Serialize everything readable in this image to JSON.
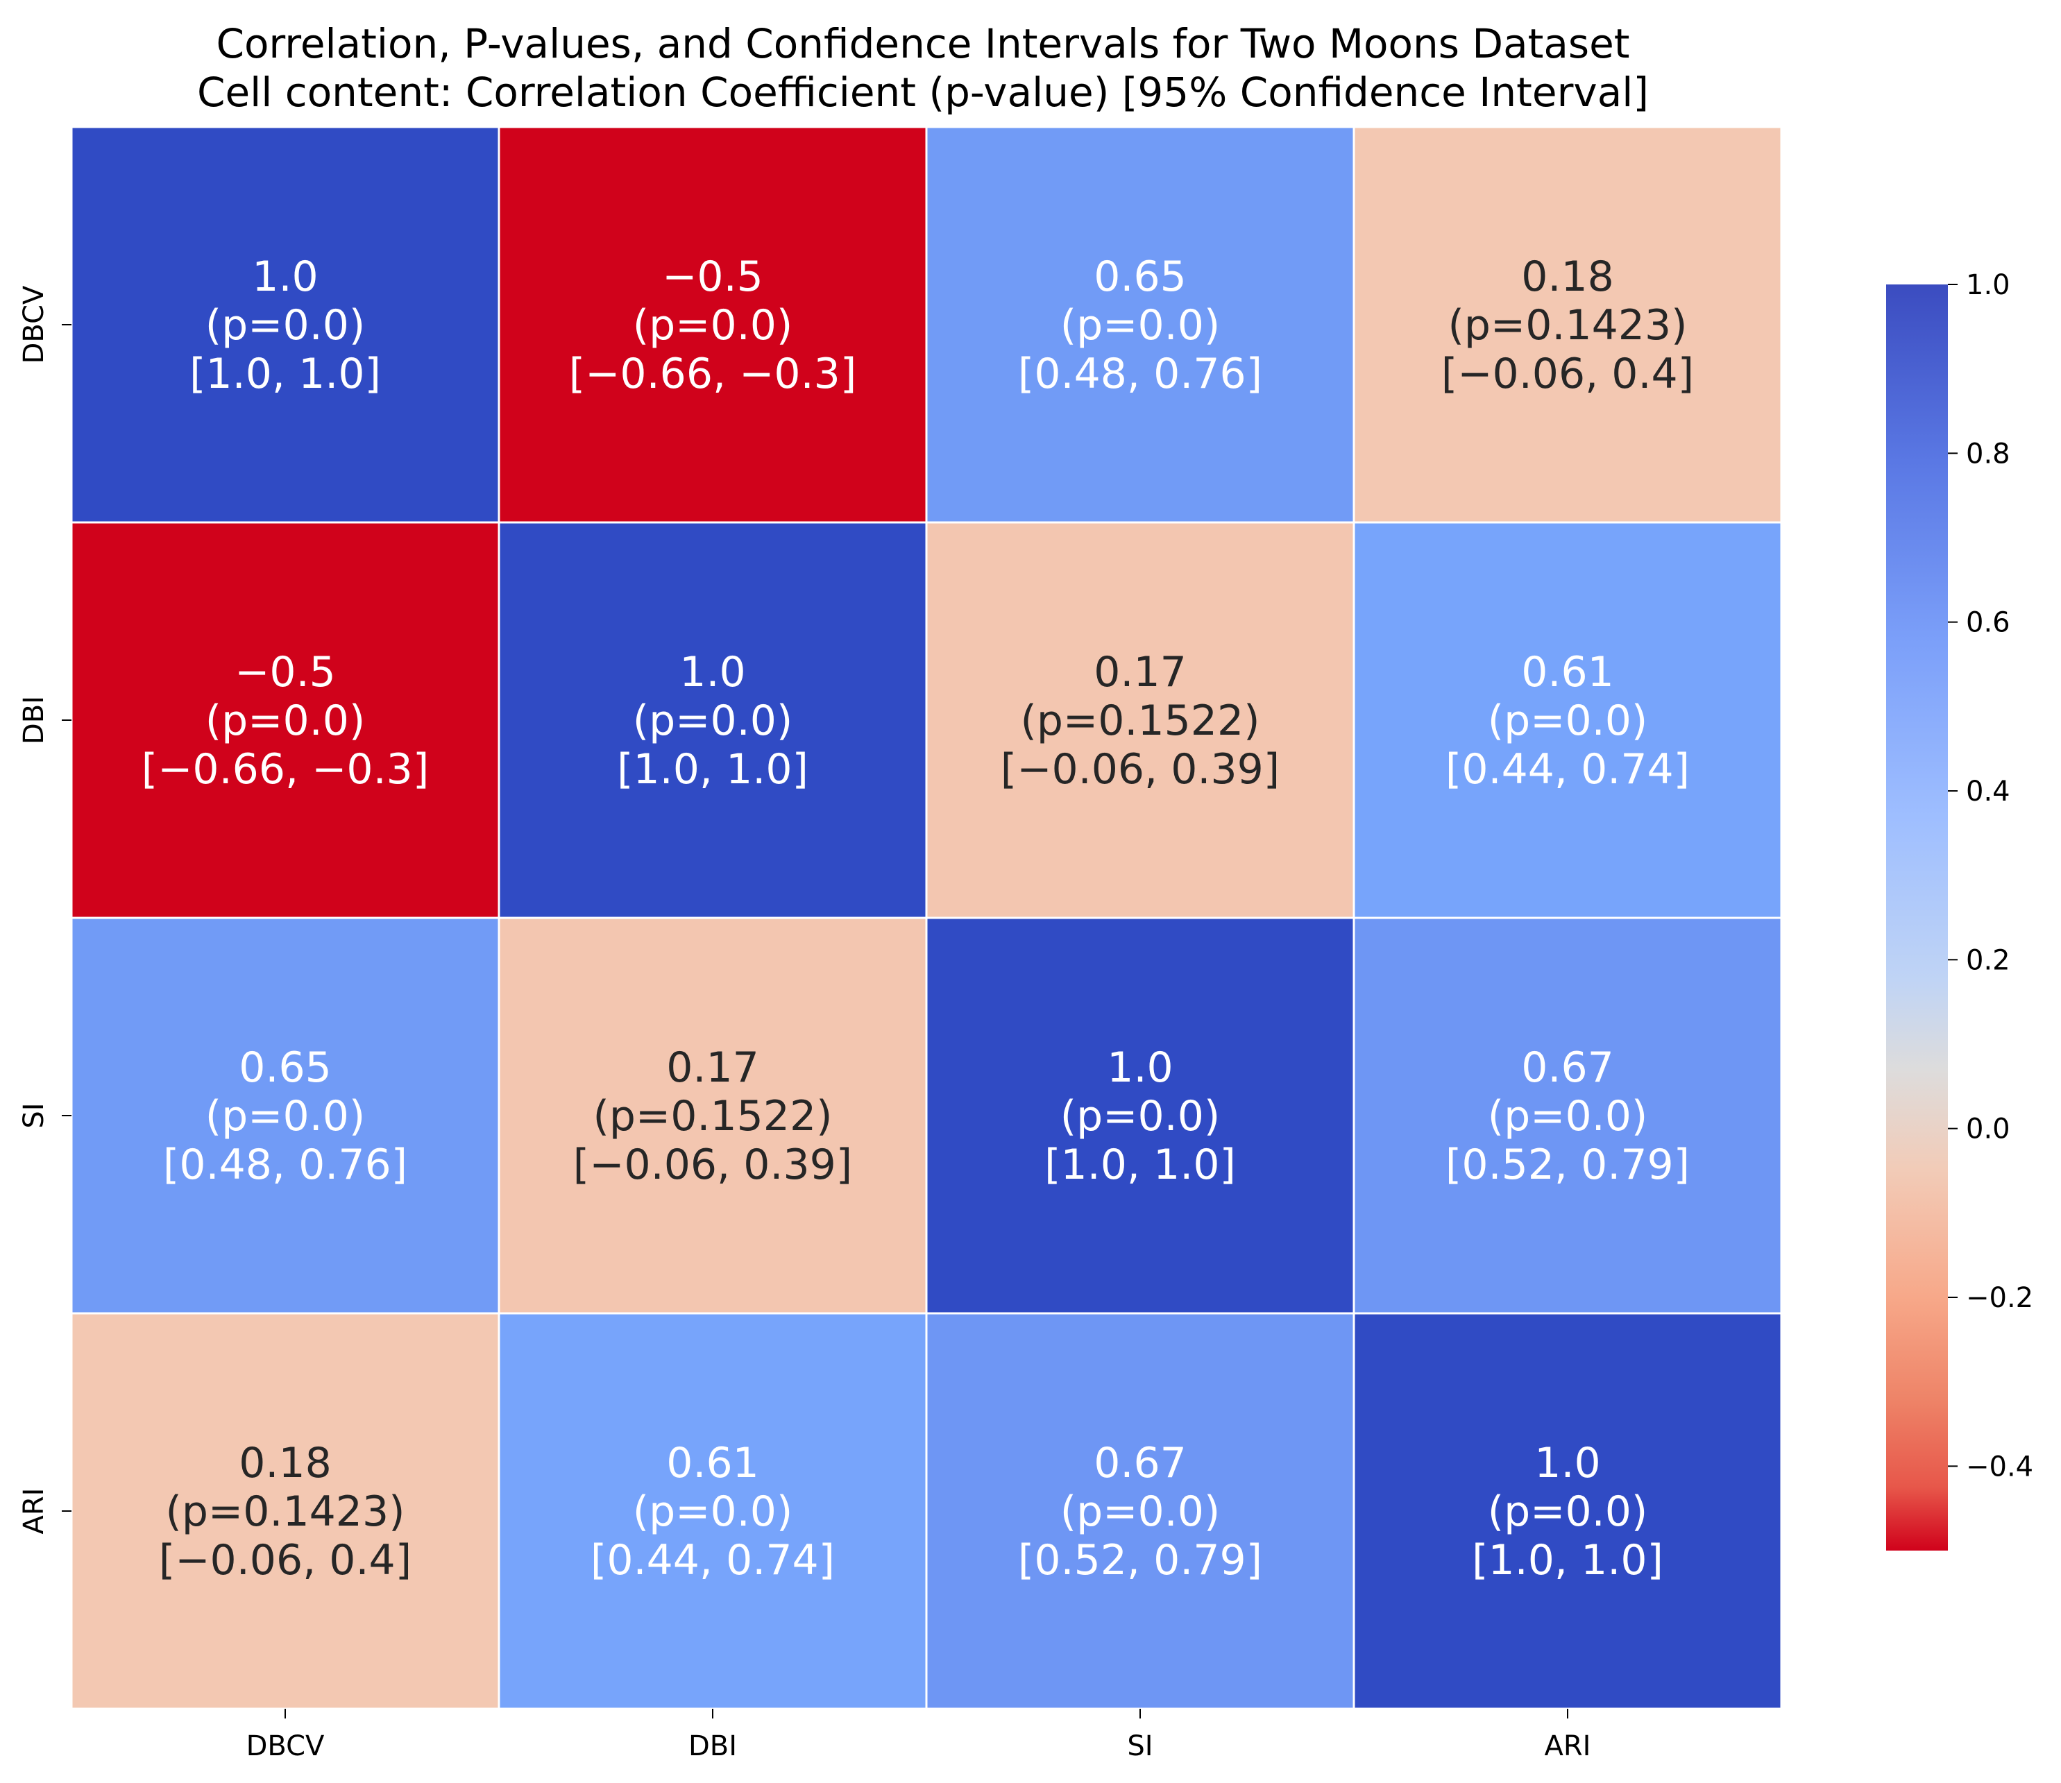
{
  "chart_data": {
    "type": "heatmap",
    "title": "Correlation, P-values, and Confidence Intervals for Two Moons Dataset",
    "subtitle": "Cell content: Correlation Coefficient (p-value) [95% Confidence Interval]",
    "row_labels": [
      "DBCV",
      "DBI",
      "SI",
      "ARI"
    ],
    "col_labels": [
      "DBCV",
      "DBI",
      "SI",
      "ARI"
    ],
    "cells": [
      [
        {
          "r": "1.0",
          "p": "(p=0.0)",
          "ci": "[1.0, 1.0]",
          "value": 1.0
        },
        {
          "r": "−0.5",
          "p": "(p=0.0)",
          "ci": "[−0.66, −0.3]",
          "value": -0.5
        },
        {
          "r": "0.65",
          "p": "(p=0.0)",
          "ci": "[0.48, 0.76]",
          "value": 0.65
        },
        {
          "r": "0.18",
          "p": "(p=0.1423)",
          "ci": "[−0.06, 0.4]",
          "value": 0.18
        }
      ],
      [
        {
          "r": "−0.5",
          "p": "(p=0.0)",
          "ci": "[−0.66, −0.3]",
          "value": -0.5
        },
        {
          "r": "1.0",
          "p": "(p=0.0)",
          "ci": "[1.0, 1.0]",
          "value": 1.0
        },
        {
          "r": "0.17",
          "p": "(p=0.1522)",
          "ci": "[−0.06, 0.39]",
          "value": 0.17
        },
        {
          "r": "0.61",
          "p": "(p=0.0)",
          "ci": "[0.44, 0.74]",
          "value": 0.61
        }
      ],
      [
        {
          "r": "0.65",
          "p": "(p=0.0)",
          "ci": "[0.48, 0.76]",
          "value": 0.65
        },
        {
          "r": "0.17",
          "p": "(p=0.1522)",
          "ci": "[−0.06, 0.39]",
          "value": 0.17
        },
        {
          "r": "1.0",
          "p": "(p=0.0)",
          "ci": "[1.0, 1.0]",
          "value": 1.0
        },
        {
          "r": "0.67",
          "p": "(p=0.0)",
          "ci": "[0.52, 0.79]",
          "value": 0.67
        }
      ],
      [
        {
          "r": "0.18",
          "p": "(p=0.1423)",
          "ci": "[−0.06, 0.4]",
          "value": 0.18
        },
        {
          "r": "0.61",
          "p": "(p=0.0)",
          "ci": "[0.44, 0.74]",
          "value": 0.61
        },
        {
          "r": "0.67",
          "p": "(p=0.0)",
          "ci": "[0.52, 0.79]",
          "value": 0.67
        },
        {
          "r": "1.0",
          "p": "(p=0.0)",
          "ci": "[1.0, 1.0]",
          "value": 1.0
        }
      ]
    ],
    "colorbar": {
      "vmin": -0.5,
      "vmax": 1.0,
      "ticks": [
        1.0,
        0.8,
        0.6,
        0.4,
        0.2,
        0.0,
        -0.2,
        -0.4
      ],
      "tick_labels": [
        "1.0",
        "0.8",
        "0.6",
        "0.4",
        "0.2",
        "0.0",
        "−0.2",
        "−0.4"
      ]
    },
    "colormap": "coolwarm_r",
    "light_text_color": "#ffffff",
    "dark_text_color": "#262626",
    "cell_border_color": "#ffffff"
  }
}
